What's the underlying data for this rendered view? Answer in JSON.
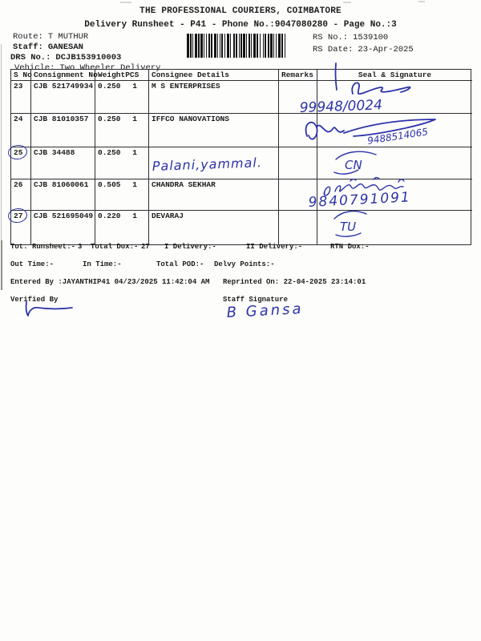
{
  "header": {
    "title": "THE PROFESSIONAL COURIERS, COIMBATORE",
    "subtitle": "Delivery Runsheet - P41 - Phone No.:9047080280 - Page No.:3"
  },
  "info": {
    "route_label": "Route:",
    "route_value": "T MUTHUR",
    "staff_label": "Staff:",
    "staff_value": "GANESAN",
    "drs_label": "DRS No.:",
    "drs_value": "DCJB153910003",
    "vehicle_label": "Vehicle:",
    "vehicle_value": "Two Wheeler Delivery",
    "rs_no_label": "RS No.:",
    "rs_no_value": "1539100",
    "rs_date_label": "RS Date:",
    "rs_date_value": "23-Apr-2025"
  },
  "barcode": {
    "icon": "barcode",
    "pattern": "3121123121311212212231121122123113212211213112211231221311222131121231221213"
  },
  "table": {
    "headers": {
      "sno": "S No",
      "consignment": "Consignment No",
      "weight": "Weight",
      "pcs": "PCS",
      "consignee": "Consignee Details",
      "remarks": "Remarks",
      "seal": "Seal & Signature"
    },
    "rows": [
      {
        "sno": "23",
        "circled": false,
        "consignment": "CJB 521749934",
        "weight": "0.250",
        "pcs": "1",
        "consignee": "M S ENTERPRISES",
        "remarks": ""
      },
      {
        "sno": "24",
        "circled": false,
        "consignment": "CJB 81010357",
        "weight": "0.250",
        "pcs": "1",
        "consignee": "IFFCO NANOVATIONS",
        "remarks": ""
      },
      {
        "sno": "25",
        "circled": true,
        "consignment": "CJB 34488",
        "weight": "0.250",
        "pcs": "1",
        "consignee": "",
        "remarks": ""
      },
      {
        "sno": "26",
        "circled": false,
        "consignment": "CJB 81060061",
        "weight": "0.505",
        "pcs": "1",
        "consignee": "CHANDRA SEKHAR",
        "remarks": ""
      },
      {
        "sno": "27",
        "circled": true,
        "consignment": "CJB 521695049",
        "weight": "0.220",
        "pcs": "1",
        "consignee": "DEVARAJ",
        "remarks": ""
      }
    ]
  },
  "summary": {
    "tot_runsheet_label": "Tot. Runsheet:-",
    "tot_runsheet_value": "3",
    "total_dox_label": "Total Dox:-",
    "total_dox_value": "27",
    "i_delivery_label": "I Delivery:-",
    "ii_delivery_label": "II Delivery:-",
    "rtn_dox_label": "RTN Dox:-",
    "out_time_label": "Out Time:-",
    "in_time_label": "In Time:-",
    "total_pod_label": "Total POD:-",
    "delvy_points_label": "Delvy Points:-",
    "entered_by": "Entered By :JAYANTHIP41 04/23/2025 11:42:04 AM",
    "reprinted_on": "Reprinted On: 22-04-2025 23:14:01",
    "verified_by_label": "Verified By",
    "staff_signature_label": "Staff Signature"
  },
  "annotations": {
    "ink_color": "#2c33a8",
    "row23_phone": "99948/0024",
    "row24_phone": "9488514065",
    "row25_consignee_handwritten": "Palani,yammal.",
    "row25_seal_code": "CN",
    "row26_script_note": "(Tamil script name)",
    "row26_phone": "9840791091",
    "row27_seal_code": "TU",
    "staff_sign_text": "B Gansa"
  }
}
